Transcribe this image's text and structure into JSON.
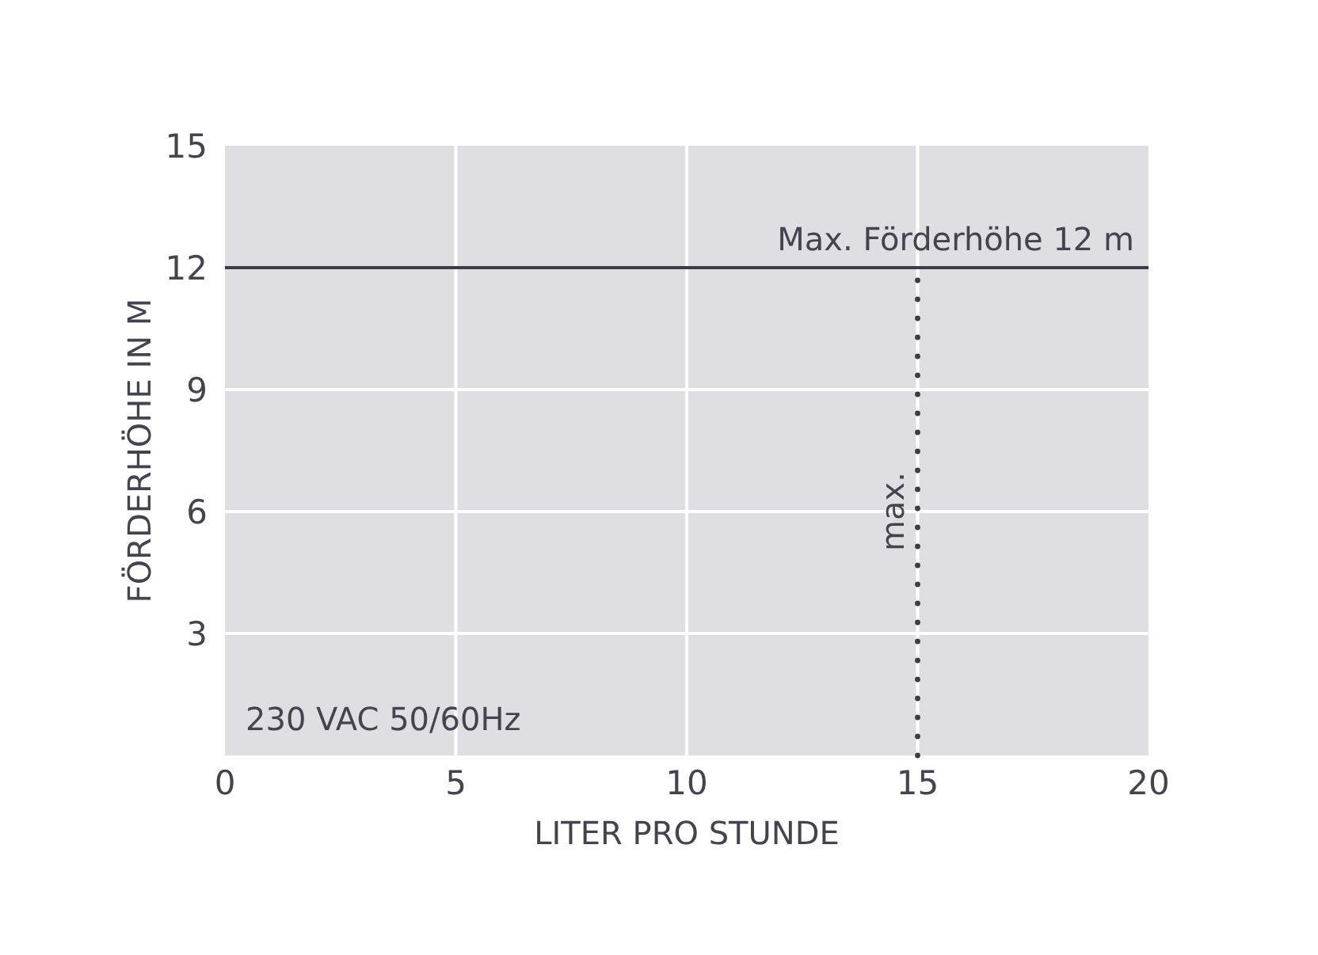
{
  "chart_data": {
    "type": "line",
    "xlabel": "LITER PRO STUNDE",
    "ylabel": "FÖRDERHÖHE IN M",
    "xlim": [
      0,
      20
    ],
    "ylim": [
      0,
      15
    ],
    "xticks": [
      0,
      5,
      10,
      15,
      20
    ],
    "yticks": [
      3,
      6,
      9,
      12,
      15
    ],
    "grid": true,
    "series": [
      {
        "name": "max.",
        "x": [
          15,
          15
        ],
        "values": [
          0,
          12
        ],
        "color": "#3c3c46",
        "line_style": "dotted"
      }
    ],
    "ref_lines": [
      {
        "axis": "y",
        "value": 12,
        "label": "Max. Förderhöhe 12 m",
        "color": "#3c3c46"
      }
    ],
    "annotations": [
      "230 VAC 50/60Hz"
    ]
  }
}
